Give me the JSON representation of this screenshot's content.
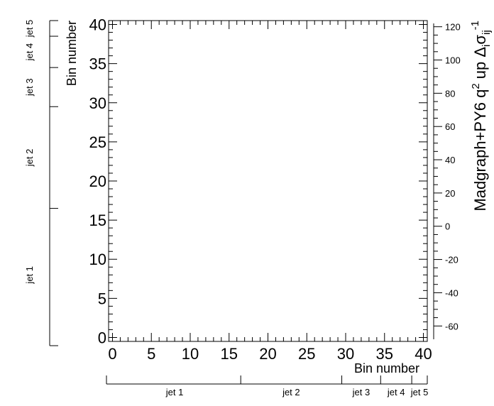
{
  "chart_data": {
    "type": "heatmap",
    "title": "",
    "xlabel": "Bin number",
    "ylabel": "Bin number",
    "zlabel": "Madgraph+PY6 q",
    "zlabel_sup1": "2",
    "zlabel_rest": " up Δ",
    "zlabel_sub1": "i",
    "zlabel_sigma": "σ",
    "zlabel_sub2": "ij",
    "zlabel_sup2": "-1",
    "xlim": [
      -0.5,
      40.5
    ],
    "ylim": [
      -0.5,
      40.5
    ],
    "zlim": [
      -68,
      122
    ],
    "x_ticks": [
      "0",
      "5",
      "10",
      "15",
      "20",
      "25",
      "30",
      "35",
      "40"
    ],
    "y_ticks": [
      "0",
      "5",
      "10",
      "15",
      "20",
      "25",
      "30",
      "35",
      "40"
    ],
    "z_ticks": [
      "-60",
      "-40",
      "-20",
      "0",
      "20",
      "40",
      "60",
      "80",
      "100",
      "120"
    ],
    "jet_groups": [
      {
        "label": "jet 1",
        "start": -0.5,
        "end": 16.5
      },
      {
        "label": "jet 2",
        "start": 16.5,
        "end": 29.5
      },
      {
        "label": "jet 3",
        "start": 29.5,
        "end": 34.5
      },
      {
        "label": "jet 4",
        "start": 34.5,
        "end": 38.5
      },
      {
        "label": "jet 5",
        "start": 38.5,
        "end": 40.5
      }
    ],
    "values": []
  }
}
